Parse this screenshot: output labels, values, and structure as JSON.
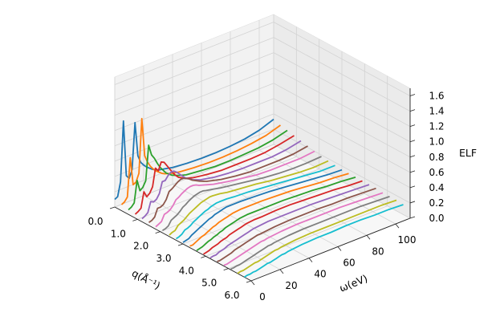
{
  "chart_data": {
    "type": "line",
    "projection": "3d",
    "title": "",
    "xlabel": "q(Å⁻¹)",
    "ylabel": "ω(eV)",
    "zlabel": "ELF",
    "xlim": [
      0,
      6
    ],
    "ylim": [
      0,
      110
    ],
    "zlim": [
      0,
      1.7
    ],
    "xticks": [
      "0.0",
      "1.0",
      "2.0",
      "3.0",
      "4.0",
      "5.0",
      "6.0"
    ],
    "yticks": [
      "0",
      "20",
      "40",
      "60",
      "80",
      "100"
    ],
    "zticks": [
      "0.0",
      "0.2",
      "0.4",
      "0.6",
      "0.8",
      "1.0",
      "1.2",
      "1.4",
      "1.6"
    ],
    "grid": true,
    "colors": [
      "#1f77b4",
      "#ff7f0e",
      "#2ca02c",
      "#d62728",
      "#9467bd",
      "#8c564b",
      "#e377c2",
      "#7f7f7f",
      "#bcbd22",
      "#17becf"
    ],
    "omega": [
      0,
      2,
      4,
      6,
      8,
      10,
      12,
      14,
      16,
      18,
      20,
      22,
      24,
      26,
      28,
      30,
      35,
      40,
      50,
      60,
      70,
      80,
      90,
      100,
      110
    ],
    "series": [
      {
        "q": 0.0,
        "values": [
          0.1,
          0.12,
          0.3,
          1.08,
          0.35,
          0.3,
          0.4,
          1.0,
          0.55,
          0.45,
          0.4,
          0.36,
          0.33,
          0.3,
          0.28,
          0.26,
          0.24,
          0.22,
          0.2,
          0.19,
          0.19,
          0.2,
          0.22,
          0.26,
          0.33
        ]
      },
      {
        "q": 0.3,
        "values": [
          0.08,
          0.1,
          0.15,
          0.65,
          0.28,
          0.3,
          0.4,
          1.1,
          0.6,
          0.5,
          0.43,
          0.38,
          0.34,
          0.31,
          0.28,
          0.26,
          0.23,
          0.21,
          0.19,
          0.18,
          0.18,
          0.19,
          0.21,
          0.24,
          0.3
        ]
      },
      {
        "q": 0.6,
        "values": [
          0.06,
          0.08,
          0.12,
          0.4,
          0.25,
          0.28,
          0.35,
          0.8,
          0.66,
          0.6,
          0.52,
          0.45,
          0.4,
          0.35,
          0.32,
          0.29,
          0.25,
          0.22,
          0.2,
          0.18,
          0.18,
          0.19,
          0.2,
          0.23,
          0.28
        ]
      },
      {
        "q": 0.9,
        "values": [
          0.05,
          0.07,
          0.1,
          0.3,
          0.22,
          0.25,
          0.32,
          0.55,
          0.5,
          0.6,
          0.58,
          0.52,
          0.46,
          0.4,
          0.35,
          0.31,
          0.26,
          0.23,
          0.2,
          0.18,
          0.18,
          0.18,
          0.19,
          0.22,
          0.26
        ]
      },
      {
        "q": 1.2,
        "values": [
          0.04,
          0.06,
          0.09,
          0.22,
          0.2,
          0.22,
          0.28,
          0.42,
          0.42,
          0.47,
          0.5,
          0.5,
          0.47,
          0.43,
          0.39,
          0.35,
          0.29,
          0.25,
          0.21,
          0.19,
          0.18,
          0.18,
          0.18,
          0.2,
          0.24
        ]
      },
      {
        "q": 1.5,
        "values": [
          0.04,
          0.05,
          0.08,
          0.18,
          0.18,
          0.2,
          0.25,
          0.34,
          0.36,
          0.39,
          0.42,
          0.44,
          0.44,
          0.42,
          0.4,
          0.37,
          0.32,
          0.28,
          0.23,
          0.2,
          0.18,
          0.18,
          0.18,
          0.19,
          0.22
        ]
      },
      {
        "q": 1.8,
        "values": [
          0.03,
          0.05,
          0.07,
          0.15,
          0.16,
          0.18,
          0.22,
          0.28,
          0.3,
          0.33,
          0.35,
          0.37,
          0.38,
          0.38,
          0.37,
          0.35,
          0.32,
          0.29,
          0.25,
          0.22,
          0.19,
          0.18,
          0.18,
          0.18,
          0.2
        ]
      },
      {
        "q": 2.1,
        "values": [
          0.03,
          0.04,
          0.06,
          0.12,
          0.14,
          0.16,
          0.19,
          0.23,
          0.25,
          0.28,
          0.3,
          0.32,
          0.33,
          0.34,
          0.34,
          0.33,
          0.31,
          0.29,
          0.26,
          0.23,
          0.2,
          0.18,
          0.17,
          0.17,
          0.18
        ]
      },
      {
        "q": 2.4,
        "values": [
          0.02,
          0.04,
          0.05,
          0.1,
          0.12,
          0.14,
          0.17,
          0.2,
          0.22,
          0.24,
          0.26,
          0.28,
          0.29,
          0.3,
          0.31,
          0.31,
          0.3,
          0.28,
          0.26,
          0.24,
          0.21,
          0.19,
          0.17,
          0.16,
          0.17
        ]
      },
      {
        "q": 2.7,
        "values": [
          0.02,
          0.03,
          0.05,
          0.09,
          0.1,
          0.12,
          0.15,
          0.17,
          0.19,
          0.21,
          0.23,
          0.24,
          0.26,
          0.27,
          0.28,
          0.28,
          0.28,
          0.27,
          0.26,
          0.24,
          0.22,
          0.2,
          0.18,
          0.16,
          0.16
        ]
      },
      {
        "q": 3.0,
        "values": [
          0.02,
          0.03,
          0.04,
          0.07,
          0.09,
          0.11,
          0.13,
          0.15,
          0.17,
          0.19,
          0.2,
          0.22,
          0.23,
          0.24,
          0.25,
          0.26,
          0.26,
          0.26,
          0.25,
          0.24,
          0.22,
          0.2,
          0.18,
          0.16,
          0.15
        ]
      },
      {
        "q": 3.3,
        "values": [
          0.02,
          0.02,
          0.04,
          0.06,
          0.08,
          0.09,
          0.11,
          0.13,
          0.15,
          0.16,
          0.18,
          0.19,
          0.2,
          0.21,
          0.22,
          0.23,
          0.24,
          0.24,
          0.24,
          0.23,
          0.22,
          0.2,
          0.18,
          0.17,
          0.15
        ]
      },
      {
        "q": 3.6,
        "values": [
          0.01,
          0.02,
          0.03,
          0.05,
          0.07,
          0.08,
          0.1,
          0.11,
          0.13,
          0.14,
          0.16,
          0.17,
          0.18,
          0.19,
          0.2,
          0.21,
          0.22,
          0.22,
          0.22,
          0.22,
          0.21,
          0.2,
          0.18,
          0.17,
          0.15
        ]
      },
      {
        "q": 3.9,
        "values": [
          0.01,
          0.02,
          0.03,
          0.05,
          0.06,
          0.07,
          0.09,
          0.1,
          0.11,
          0.13,
          0.14,
          0.15,
          0.16,
          0.17,
          0.18,
          0.19,
          0.2,
          0.2,
          0.21,
          0.21,
          0.2,
          0.19,
          0.18,
          0.16,
          0.15
        ]
      },
      {
        "q": 4.2,
        "values": [
          0.01,
          0.02,
          0.02,
          0.04,
          0.05,
          0.06,
          0.08,
          0.09,
          0.1,
          0.11,
          0.12,
          0.13,
          0.14,
          0.15,
          0.16,
          0.17,
          0.18,
          0.19,
          0.19,
          0.19,
          0.19,
          0.18,
          0.17,
          0.16,
          0.15
        ]
      },
      {
        "q": 4.5,
        "values": [
          0.01,
          0.01,
          0.02,
          0.03,
          0.04,
          0.05,
          0.07,
          0.08,
          0.09,
          0.1,
          0.11,
          0.12,
          0.13,
          0.14,
          0.15,
          0.15,
          0.16,
          0.17,
          0.18,
          0.18,
          0.18,
          0.17,
          0.17,
          0.16,
          0.15
        ]
      },
      {
        "q": 4.8,
        "values": [
          0.01,
          0.01,
          0.02,
          0.03,
          0.04,
          0.05,
          0.06,
          0.07,
          0.08,
          0.09,
          0.1,
          0.11,
          0.12,
          0.13,
          0.13,
          0.14,
          0.15,
          0.16,
          0.17,
          0.17,
          0.17,
          0.17,
          0.16,
          0.15,
          0.14
        ]
      },
      {
        "q": 5.1,
        "values": [
          0.01,
          0.01,
          0.02,
          0.02,
          0.03,
          0.04,
          0.05,
          0.06,
          0.07,
          0.08,
          0.09,
          0.1,
          0.11,
          0.12,
          0.12,
          0.13,
          0.14,
          0.15,
          0.16,
          0.16,
          0.16,
          0.16,
          0.16,
          0.15,
          0.14
        ]
      },
      {
        "q": 5.4,
        "values": [
          0.0,
          0.01,
          0.01,
          0.02,
          0.03,
          0.04,
          0.05,
          0.05,
          0.06,
          0.07,
          0.08,
          0.09,
          0.1,
          0.11,
          0.11,
          0.12,
          0.13,
          0.14,
          0.15,
          0.15,
          0.15,
          0.15,
          0.15,
          0.15,
          0.14
        ]
      },
      {
        "q": 5.7,
        "values": [
          0.0,
          0.01,
          0.01,
          0.02,
          0.02,
          0.03,
          0.04,
          0.05,
          0.06,
          0.06,
          0.07,
          0.08,
          0.09,
          0.1,
          0.1,
          0.11,
          0.12,
          0.13,
          0.14,
          0.14,
          0.15,
          0.15,
          0.14,
          0.14,
          0.13
        ]
      }
    ]
  }
}
